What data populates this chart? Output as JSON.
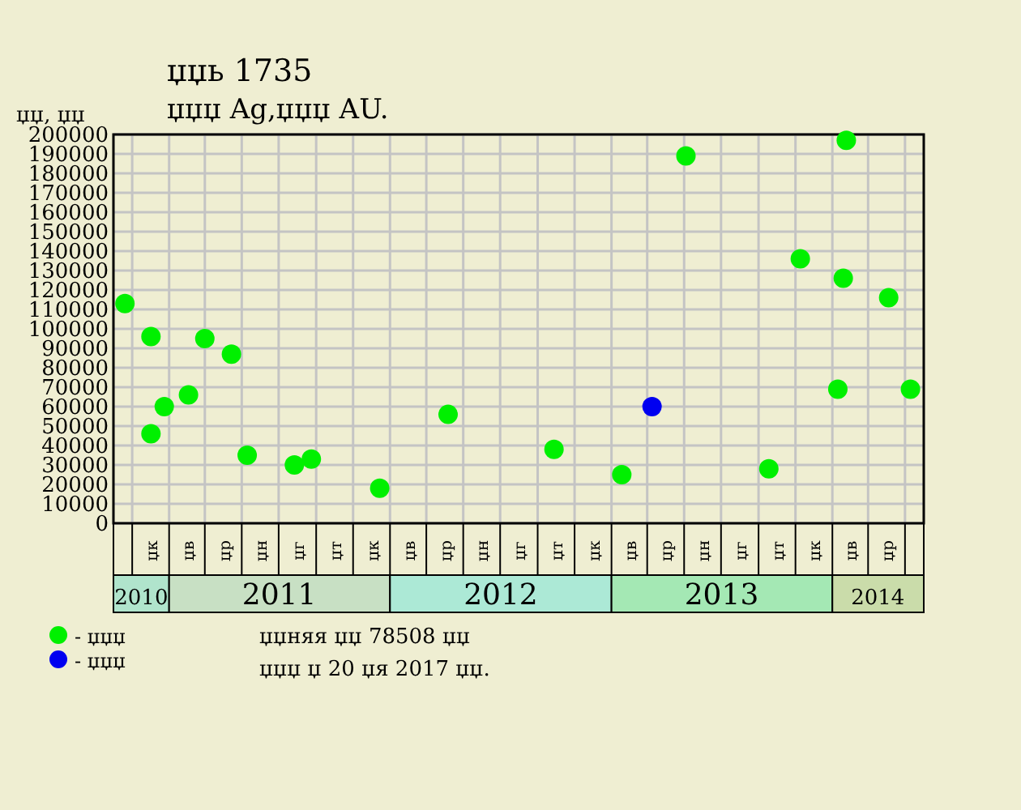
{
  "chart_data": {
    "type": "scatter",
    "title": "џџь 1735",
    "subtitle": "џџџ Ag,џџџ AU.",
    "ylabel": "џџ, џџ",
    "xlim": [
      "2010-10-01",
      "2014-06-01"
    ],
    "xticks": [
      {
        "value": "2010-11-16",
        "label": "2010"
      },
      {
        "value": "2011-07-02",
        "label": "2011"
      },
      {
        "value": "2012-07-02",
        "label": "2012"
      },
      {
        "value": "2013-07-02",
        "label": "2013"
      },
      {
        "value": "2014-03-17",
        "label": "2014"
      }
    ],
    "ylim": [
      0,
      200000
    ],
    "yticks": [
      0,
      10000,
      20000,
      30000,
      40000,
      50000,
      60000,
      70000,
      80000,
      90000,
      100000,
      110000,
      120000,
      130000,
      140000,
      150000,
      160000,
      170000,
      180000,
      190000,
      200000
    ],
    "grid": true,
    "marker": "circle",
    "legend": "bottom left",
    "series": [
      {
        "name": "- џџџ",
        "color": "#00f000",
        "x": [
          "2010-10-20",
          "2010-12-02",
          "2010-12-02",
          "2010-12-24",
          "2011-02-02",
          "2011-03-01",
          "2011-04-14",
          "2011-05-10",
          "2011-07-27",
          "2011-08-24",
          "2011-12-15",
          "2012-04-06",
          "2012-09-28",
          "2013-01-18",
          "2013-05-04",
          "2013-09-18",
          "2013-11-09",
          "2014-01-10",
          "2014-01-19",
          "2014-01-24",
          "2014-04-04",
          "2014-05-10"
        ],
        "values": [
          113000,
          96000,
          46000,
          60000,
          66000,
          95000,
          87000,
          35000,
          30000,
          33000,
          18000,
          56000,
          38000,
          25000,
          189000,
          28000,
          136000,
          69000,
          126000,
          197000,
          116000,
          69000
        ]
      },
      {
        "name": "- џџџ",
        "color": "#0000f0",
        "x": [
          "2013-03-09"
        ],
        "values": [
          60000
        ]
      }
    ],
    "annotations": [
      "џк",
      "џв",
      "џр",
      "џн",
      "џг",
      "џт",
      "џк",
      "џв",
      "џр",
      "џн",
      "џг",
      "џт",
      "џк",
      "џв",
      "џр",
      "џн",
      "џг",
      "џт",
      "џк",
      "џв",
      "џр",
      "џџняя џџ 78508 џџ",
      "џџџ џ 20 џя 2017 џџ."
    ]
  }
}
